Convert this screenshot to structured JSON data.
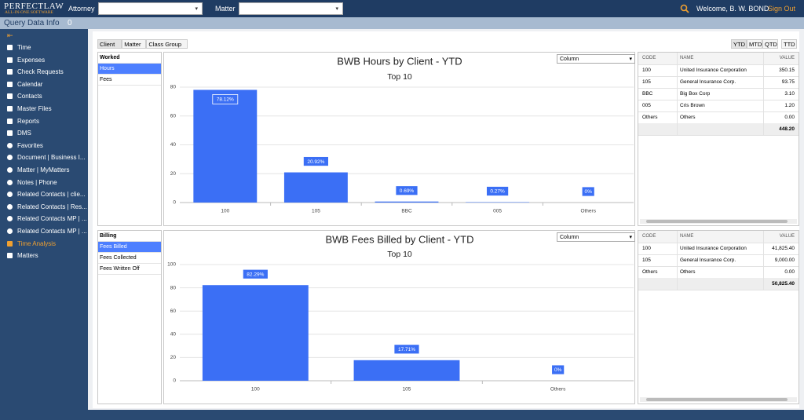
{
  "header": {
    "logo": "PERFECTLAW",
    "logo_sub": "ALL-IN-ONE SOFTWARE",
    "attorney_label": "Attorney",
    "matter_label": "Matter",
    "welcome": "Welcome, B. W. BOND",
    "sign_out": "Sign Out"
  },
  "info_bar": {
    "label": "Query Data Info",
    "count": "0"
  },
  "sidebar": [
    "Time",
    "Expenses",
    "Check Requests",
    "Calendar",
    "Contacts",
    "Master Files",
    "Reports",
    "DMS",
    "Favorites",
    "Document | Business I...",
    "Matter | MyMatters",
    "Notes | Phone",
    "Related Contacts | clie...",
    "Related Contacts | Res...",
    "Related Contacts MP | ...",
    "Related Contacts MP | ...",
    "Time Analysis",
    "Matters"
  ],
  "tabs": [
    "Client",
    "Matter",
    "Class Group"
  ],
  "periods": [
    "YTD",
    "MTD",
    "QTD",
    "TTD"
  ],
  "panels": [
    {
      "heading": "Worked",
      "items": [
        "Hours",
        "Fees"
      ]
    },
    {
      "heading": "Billing",
      "items": [
        "Fees Billed",
        "Fees Collected",
        "Fees Written Off"
      ]
    }
  ],
  "chart_data": [
    {
      "type": "bar",
      "title": "BWB Hours by Client - YTD",
      "subtitle": "Top 10",
      "dropdown": "Column",
      "categories": [
        "100",
        "105",
        "BBC",
        "005",
        "Others"
      ],
      "values": [
        78.12,
        20.92,
        0.69,
        0.27,
        0
      ],
      "value_labels": [
        "78.12%",
        "20.92%",
        "0.69%",
        "0.27%",
        "0%"
      ],
      "color": "#3b6ff5",
      "ylim": [
        0,
        80
      ],
      "yticks": [
        0,
        20,
        40,
        60,
        80
      ],
      "grid": true
    },
    {
      "type": "bar",
      "title": "BWB Fees Billed by Client - YTD",
      "subtitle": "Top 10",
      "dropdown": "Column",
      "categories": [
        "100",
        "105",
        "Others"
      ],
      "values": [
        82.29,
        17.71,
        0
      ],
      "value_labels": [
        "82.29%",
        "17.71%",
        "0%"
      ],
      "color": "#3b6ff5",
      "ylim": [
        0,
        100
      ],
      "yticks": [
        0,
        20,
        40,
        60,
        80,
        100
      ],
      "grid": true
    }
  ],
  "tables": [
    {
      "columns": [
        "CODE",
        "NAME",
        "VALUE"
      ],
      "rows": [
        [
          "100",
          "United Insurance Corporation",
          "350.15"
        ],
        [
          "105",
          "General Insurance Corp.",
          "93.75"
        ],
        [
          "BBC",
          "Big Box Corp",
          "3.10"
        ],
        [
          "005",
          "Cris Brown",
          "1.20"
        ],
        [
          "Others",
          "Others",
          "0.00"
        ]
      ],
      "total": "448.20"
    },
    {
      "columns": [
        "CODE",
        "NAME",
        "VALUE"
      ],
      "rows": [
        [
          "100",
          "United Insurance Corporation",
          "41,825.40"
        ],
        [
          "105",
          "General Insurance Corp.",
          "9,000.00"
        ],
        [
          "Others",
          "Others",
          "0.00"
        ]
      ],
      "total": "50,825.40"
    }
  ]
}
